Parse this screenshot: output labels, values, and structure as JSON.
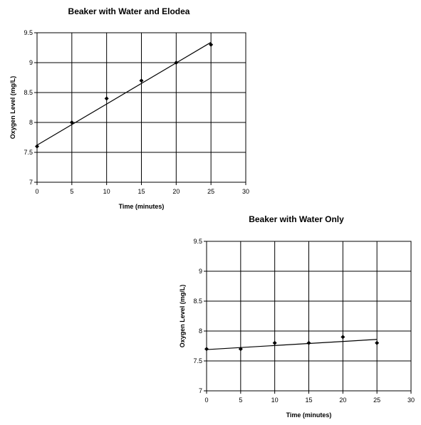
{
  "chart_data": [
    {
      "type": "scatter",
      "title": "Beaker with Water and Elodea",
      "xlabel": "Time (minutes)",
      "ylabel": "Oxygen Level (mg/L)",
      "xlim": [
        0,
        30
      ],
      "ylim": [
        7,
        9.5
      ],
      "x_ticks": [
        "0",
        "5",
        "10",
        "15",
        "20",
        "25",
        "30"
      ],
      "y_ticks": [
        "7",
        "7.5",
        "8",
        "8.5",
        "9",
        "9.5"
      ],
      "grid": true,
      "series": [
        {
          "x": [
            0,
            5,
            10,
            15,
            20,
            25
          ],
          "y": [
            7.6,
            8.0,
            8.4,
            8.7,
            9.0,
            9.3
          ]
        }
      ],
      "trendline": {
        "x": [
          0,
          25
        ],
        "y": [
          7.62,
          9.34
        ]
      }
    },
    {
      "type": "scatter",
      "title": "Beaker with Water Only",
      "xlabel": "Time (minutes)",
      "ylabel": "Oxygen Level (mg/L)",
      "xlim": [
        0,
        30
      ],
      "ylim": [
        7,
        9.5
      ],
      "x_ticks": [
        "0",
        "5",
        "10",
        "15",
        "20",
        "25",
        "30"
      ],
      "y_ticks": [
        "7",
        "7.5",
        "8",
        "8.5",
        "9",
        "9.5"
      ],
      "grid": true,
      "series": [
        {
          "x": [
            0,
            5,
            10,
            15,
            20,
            25
          ],
          "y": [
            7.7,
            7.7,
            7.8,
            7.8,
            7.9,
            7.8
          ]
        }
      ],
      "trendline": {
        "x": [
          0,
          25
        ],
        "y": [
          7.69,
          7.86
        ]
      }
    }
  ]
}
